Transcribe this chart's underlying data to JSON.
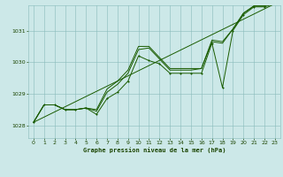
{
  "title": "Graphe pression niveau de la mer (hPa)",
  "background_color": "#cce8e8",
  "grid_color": "#88bbbb",
  "line_color": "#1a5c00",
  "text_color": "#1a4400",
  "xlim": [
    -0.5,
    23.5
  ],
  "ylim": [
    1027.6,
    1031.8
  ],
  "yticks": [
    1028,
    1029,
    1030,
    1031
  ],
  "xticks": [
    0,
    1,
    2,
    3,
    4,
    5,
    6,
    7,
    8,
    9,
    10,
    11,
    12,
    13,
    14,
    15,
    16,
    17,
    18,
    19,
    20,
    21,
    22,
    23
  ],
  "series_main": [
    1028.1,
    1028.65,
    1028.65,
    1028.5,
    1028.5,
    1028.55,
    1028.35,
    1028.85,
    1029.05,
    1029.4,
    1030.2,
    1030.05,
    1029.95,
    1029.65,
    1029.65,
    1029.65,
    1029.65,
    1030.6,
    1029.2,
    1031.0,
    1031.5,
    1031.75,
    1031.75,
    1031.85
  ],
  "series_upper1": [
    1028.1,
    1028.65,
    1028.65,
    1028.5,
    1028.5,
    1028.55,
    1028.45,
    1029.05,
    1029.3,
    1029.65,
    1030.4,
    1030.45,
    1030.1,
    1029.75,
    1029.75,
    1029.75,
    1029.8,
    1030.65,
    1030.6,
    1031.05,
    1031.55,
    1031.78,
    1031.78,
    1031.9
  ],
  "series_upper2": [
    1028.1,
    1028.65,
    1028.65,
    1028.5,
    1028.5,
    1028.55,
    1028.5,
    1029.15,
    1029.4,
    1029.75,
    1030.5,
    1030.5,
    1030.15,
    1029.8,
    1029.8,
    1029.8,
    1029.8,
    1030.7,
    1030.65,
    1031.05,
    1031.55,
    1031.78,
    1031.78,
    1031.9
  ],
  "trend_x": [
    0,
    23
  ],
  "trend_y": [
    1028.1,
    1031.85
  ]
}
